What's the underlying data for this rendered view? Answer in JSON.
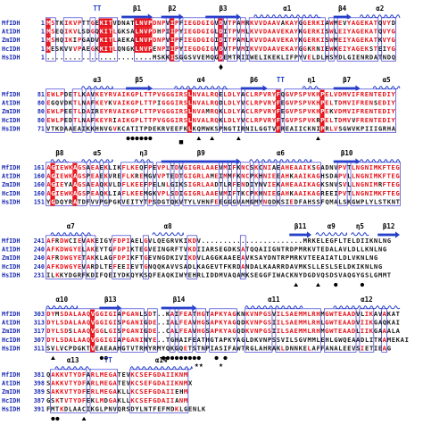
{
  "colors": {
    "conserved_bg": "#e8141c",
    "conserved_fg": "#ffffff",
    "similar_fg": "#e8141c",
    "box_stroke": "#3a3ad6",
    "normal_fg": "#1a1a1a",
    "structure": "#2440c8",
    "highlight_yellow": "#f5e600",
    "highlight_cyan": "#5fd8d0",
    "highlight_purple": "#8a2be2",
    "name_fg": "#1c2bb0",
    "marker": "#000000"
  },
  "blocks": [
    {
      "structure": [
        {
          "type": "turn",
          "label": "TT",
          "col": 12.5
        },
        {
          "type": "strand",
          "label": "β1",
          "start": 18,
          "end": 24
        },
        {
          "type": "strand",
          "label": "β2",
          "start": 27,
          "end": 31
        },
        {
          "type": "strand",
          "label": "β3",
          "start": 37,
          "end": 44
        },
        {
          "type": "helix",
          "label": "α1",
          "start": 48,
          "end": 62
        },
        {
          "type": "strand",
          "label": "β4",
          "start": 66,
          "end": 69
        },
        {
          "type": "helix",
          "label": "α2",
          "start": 72,
          "end": 80
        }
      ],
      "rows": [
        {
          "name": "MfIDH",
          "num": "1",
          "seq": "MSTKIKVPTTGEKITVDNATLNVPDNPVIPFIEGDGIGVDVTPAMRKVVDAAVAKAYGGERKIAWMEVYAGEKATQVYD"
        },
        {
          "name": "AtIDH",
          "num": "1",
          "seq": "MSEQIKVLSDGQKITLGKSALNVPDHPIIPYIEGDGIGLDITPVMLKVVDAAVEKAYKGERKISWLEIYAGEKATQVYG"
        },
        {
          "name": "ZmIDH",
          "num": "1",
          "seq": "MSHQIKIPGADVKITLAEKALNVPDNPVIPFIEGDGIGIDITPAMLKVVDAAVEKAYKGERKISWMEIYAGEKATKVYG"
        },
        {
          "name": "HcIDH",
          "num": "1",
          "seq": "MESKVVVPAEGKKITLQNGKLNVPENPIIPYIEGDGIGVDVTPVMIKVVDAAVEKAYGGKRNIEWKEIYAGEKSTEIYG"
        },
        {
          "name": "HsIDH",
          "num": "1",
          "seq": "........................MSKKISGGSVVEMQGDEMTRIIWELIKEKLIFPYVELDLHSYDLGIENRDATNDQ"
        }
      ],
      "marks": [
        {
          "type": "diamond",
          "col": 40
        }
      ]
    },
    {
      "structure": [
        {
          "type": "helix",
          "label": "α3",
          "start": 9,
          "end": 15
        },
        {
          "type": "strand",
          "label": "β5",
          "start": 19,
          "end": 24
        },
        {
          "type": "helix",
          "label": "α4",
          "start": 30,
          "end": 41
        },
        {
          "type": "strand",
          "label": "β6",
          "start": 45,
          "end": 50
        },
        {
          "type": "turn",
          "label": "TT",
          "col": 54
        },
        {
          "type": "helix",
          "label": "η1",
          "start": 59,
          "end": 62
        },
        {
          "type": "strand",
          "label": "β7",
          "start": 66,
          "end": 71
        },
        {
          "type": "helix",
          "label": "α5",
          "start": 75,
          "end": 80
        }
      ],
      "rows": [
        {
          "name": "MfIDH",
          "num": "81",
          "seq": "EWLPDETLKAVKEYRVAIKGPLTTPVGGGIRSLNVALRQELDLYACLRPVRYFQGVPSPVKHPELVDMVIFRENTEDIY"
        },
        {
          "name": "AtIDH",
          "num": "80",
          "seq": "EGQVDKTLNAFKEYKVAIKGPLTTPIGGGIRSLNVALRQDLDLYVCLRPVRYFEGVPSPVKHPELTDMVIFRENSEDIY"
        },
        {
          "name": "ZmIDH",
          "num": "80",
          "seq": "EWLPEETLDAIREYRVAIKGPLTTPVGGGIRSLNVAMRQKLDLYACLRPVRYFEGVPSPVKHPEKVDMVIFRENTEDIY"
        },
        {
          "name": "HcIDH",
          "num": "80",
          "seq": "EWLPEDTLNAFKEYRIAIKGPLTTPVGGGIRSLNVALRQKLDLYVCLRPVRYFTGVPSPVKRPELTDMVVFRENTEDIY"
        },
        {
          "name": "HsIDH",
          "num": "71",
          "seq": "VTKDAAEAIKKHNVGVKCATITPDEKRVEEFKLKQMWKSPNGTIRNILGGTVFREAIICKNIPRLVSGWVKPIIIGRHA"
        }
      ],
      "marks": [
        {
          "type": "dot",
          "col": 19
        },
        {
          "type": "dot",
          "col": 20
        },
        {
          "type": "dot",
          "col": 21
        },
        {
          "type": "dot",
          "col": 22
        },
        {
          "type": "dot",
          "col": 23
        },
        {
          "type": "dot",
          "col": 24
        },
        {
          "type": "square",
          "col": 31
        },
        {
          "type": "triangle",
          "col": 35
        },
        {
          "type": "triangle",
          "col": 38
        },
        {
          "type": "triangle",
          "col": 44
        },
        {
          "type": "triangle",
          "col": 62
        }
      ]
    },
    {
      "structure": [
        {
          "type": "helix",
          "label": "β8",
          "start": 2,
          "end": 5
        },
        {
          "type": "helix",
          "label": "α5",
          "start": 9,
          "end": 15
        },
        {
          "type": "helix",
          "label": "η3",
          "start": 21,
          "end": 24
        },
        {
          "type": "strand",
          "label": "β9",
          "start": 27,
          "end": 44
        },
        {
          "type": "helix",
          "label": "α6",
          "start": 47,
          "end": 60
        },
        {
          "type": "strand",
          "label": "β10",
          "start": 66,
          "end": 71
        },
        {
          "type": "helix",
          "label": "",
          "start": 72,
          "end": 80
        }
      ],
      "rows": [
        {
          "name": "MfIDH",
          "num": "161",
          "seq": "AGIEWKAGSAEAEKLIKFLKEQFPEVPLTDVGIGRLAAEVMIFKNCSKCNIAEAHEAAIKSGADNVPVTLNGNIMKFTEG"
        },
        {
          "name": "AtIDH",
          "num": "160",
          "seq": "AGIEWKAGSPEAEKVREFLKREMGVVPTEDTGIGRLAMEIMMFKNCPKHNIEEAHKAAIKAGHSDAPVLLNGNIMKFTEG"
        },
        {
          "name": "ZmIDH",
          "num": "160",
          "seq": "AGIEYAAGSAEAQKVLDFLKEEFPELNLGIKSIGRLAADTLRFENDIYNVIEKAHEAAIKAGKSNVSVLLNGNIMRFTEG"
        },
        {
          "name": "HcIDH",
          "num": "160",
          "seq": "AGIEWKAGSPEAQKLIAFLKEEMGKVPLSDIGIGRLAAEVMIFTKCPKHNIEGAHKAAIKAGREEIPVTLNGNIMKFTEG"
        },
        {
          "name": "HsIDH",
          "num": "151",
          "seq": "YGDQYRATDFVVPGPGKVEITYTPSDGTQKVTYLVHNFEEGGGVAMGMYNQDKSIEDFAHSSFQMALSKGWPLYLSTKNT"
        }
      ],
      "marks": []
    },
    {
      "structure": [
        {
          "type": "helix",
          "label": "α7",
          "start": 2,
          "end": 10
        },
        {
          "type": "helix",
          "label": "α8",
          "start": 25,
          "end": 31
        },
        {
          "type": "strand",
          "label": "β11",
          "start": 56,
          "end": 60
        },
        {
          "type": "helix",
          "label": "α9",
          "start": 62,
          "end": 68
        },
        {
          "type": "helix",
          "label": "η5",
          "start": 70,
          "end": 73
        },
        {
          "type": "strand",
          "label": "β12",
          "start": 76,
          "end": 80
        }
      ],
      "rows": [
        {
          "name": "MfIDH",
          "num": "241",
          "seq": "AFRDWCIEVAKEIGYFDPIAELGVLQEGRVKIKDV.......................MRKELEGFLTELDIIKNLNG"
        },
        {
          "name": "AtIDH",
          "num": "240",
          "seq": "AFKDWGYELAKEYTGFDPIKTEGVEINGRFTVKDIIARSEGDKSATQQAIIGNTRDPMRKVTEDALAVLDLLKNLNG"
        },
        {
          "name": "ZmIDH",
          "num": "240",
          "seq": "AFRDWGYETAKKLAGFDPIKFTGEVNGDKIVIKDVLAGGKAAEEAVKSAYDNTRPMRKVTEEAIATLDLVKNLNG"
        },
        {
          "name": "HcIDH",
          "num": "240",
          "seq": "AFKDWGYEVARDLTEFEEIEVTGNQQKAVVSADLKAGEVTFKRDANDALKAARRDAVMKSLLESLSELDKIKNLNG"
        },
        {
          "name": "HsIDH",
          "num": "231",
          "seq": "ILKKYDGRFKDIFQEIYDKQYKSQFEAQKIWYEHRLIDDMVAQAMKSEGGFIWACKNYDGDVQSDSVAQGYGSLGMMT"
        }
      ],
      "marks": [
        {
          "type": "triangle",
          "col": 57
        },
        {
          "type": "triangle",
          "col": 62
        },
        {
          "type": "dot",
          "col": 66
        },
        {
          "type": "dot",
          "col": 72
        }
      ]
    },
    {
      "structure": [
        {
          "type": "helix",
          "label": "α10",
          "start": 1,
          "end": 7
        },
        {
          "type": "strand",
          "label": "β13",
          "start": 13,
          "end": 17
        },
        {
          "type": "strand",
          "label": "β14",
          "start": 27,
          "end": 34
        },
        {
          "type": "helix",
          "label": "α11",
          "start": 46,
          "end": 58
        },
        {
          "type": "helix",
          "label": "α12",
          "start": 66,
          "end": 80
        }
      ],
      "rows": [
        {
          "name": "MfIDH",
          "num": "303",
          "seq": "DYMSDALAAQVGGIGIAPGANLSDT..KAIFEATHGTAPKYAGKNKVNPGSVILSAEMMLRHMGWTEAADVLIKAVAKAT"
        },
        {
          "name": "AtIDH",
          "num": "313",
          "seq": "DYLSDALAAQVGGIGISPGANIGDE..IALFEAVHGSAPKYAGQDKVNPGSIILSAEMMLRHLGWTEAADVIIKGAQKAI"
        },
        {
          "name": "ZmIDH",
          "num": "317",
          "seq": "DYLSDSLAAQVGGLGISPGANIGDE..CALFEAVHGSAPKYAGQDKVNPGSIILSAEMMLRHMGWTEAADLIIKGAAALA"
        },
        {
          "name": "HcIDH",
          "num": "307",
          "seq": "DYLSDALAAQVGGIGIAPGANINYE..TGHAIFEATHGTAPKYAGLDKVNPSSVILSGVMMLEHLGWQEAADLITKAMEKAI"
        },
        {
          "name": "HsIDH",
          "num": "311",
          "seq": "SVLVCPDGKTVEAEAAHGTVTRHYRMYQKGQETSTNPIASIFAWTRGLAHRAKLDNNKELAFFANALEEVSIETIEAG"
        }
      ],
      "marks": [
        {
          "type": "triangle",
          "col": 2
        },
        {
          "type": "dot",
          "col": 13
        },
        {
          "type": "dot",
          "col": 14
        },
        {
          "type": "dot",
          "col": 27
        },
        {
          "type": "dot",
          "col": 28
        },
        {
          "type": "dot",
          "col": 29
        },
        {
          "type": "dot",
          "col": 30
        },
        {
          "type": "dot",
          "col": 31
        },
        {
          "type": "dot",
          "col": 32
        },
        {
          "type": "dot",
          "col": 33
        },
        {
          "type": "dot",
          "col": 34
        },
        {
          "type": "dot",
          "col": 35
        },
        {
          "type": "dot",
          "col": 39
        },
        {
          "type": "dot",
          "col": 41
        },
        {
          "type": "star",
          "col": 34.5
        },
        {
          "type": "star",
          "col": 35.5
        },
        {
          "type": "star",
          "col": 40
        }
      ]
    },
    {
      "structure": [
        {
          "type": "helix",
          "label": "α13",
          "start": 3,
          "end": 10
        },
        {
          "type": "turn",
          "label": "TT",
          "col": 15
        },
        {
          "type": "helix",
          "label": "α14",
          "start": 20,
          "end": 33
        }
      ],
      "rows": [
        {
          "name": "MfIDH",
          "num": "381",
          "seq": "QAKKVTYDFARLMEGATEVKCSEFGDAIIKNM"
        },
        {
          "name": "AtIDH",
          "num": "398",
          "seq": "SAKKVTYDFARLMEGATEVKCSEFGDAIIKNMX"
        },
        {
          "name": "ZmIDH",
          "num": "389",
          "seq": "SAKKVTYDFERLMEGAKLLKCSEFGDAIIEHM"
        },
        {
          "name": "HcIDH",
          "num": "387",
          "seq": "GSKTVTYDFEKLMDGAKLLKCSEFGDAIIANM"
        },
        {
          "name": "HsIDH",
          "num": "391",
          "seq": "FMTKDLAACIKGLPNVQRSDYLNTFEFMDKLGENLK"
        }
      ],
      "marks": [
        {
          "type": "dot",
          "col": 2
        },
        {
          "type": "dot",
          "col": 3
        },
        {
          "type": "triangle",
          "col": 9
        }
      ]
    }
  ]
}
